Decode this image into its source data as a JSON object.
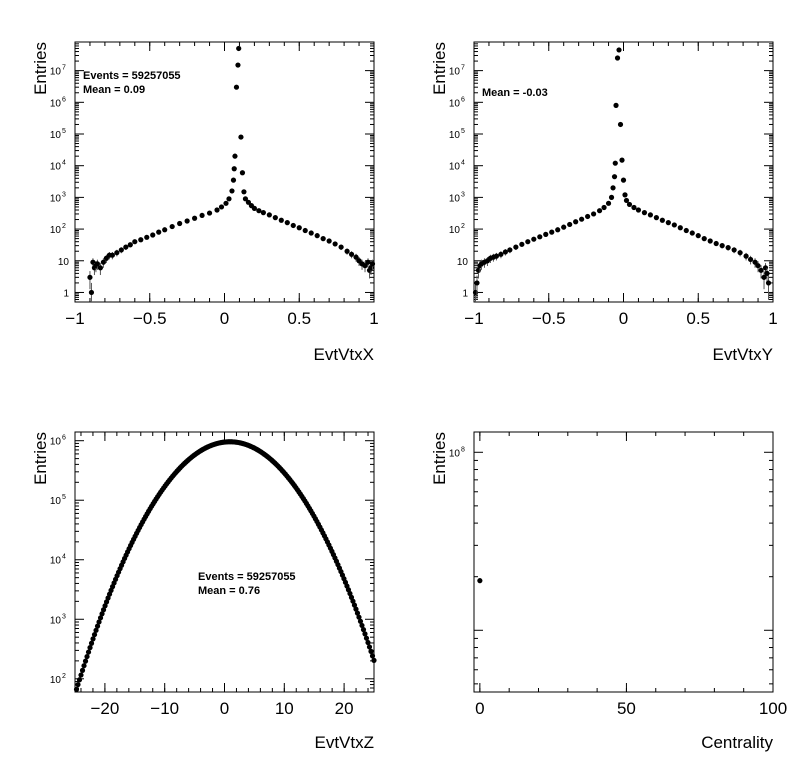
{
  "chart_data": [
    {
      "type": "scatter",
      "xlabel": "EvtVtxX",
      "ylabel": "Entries",
      "xlim": [
        -1,
        1
      ],
      "ylim": [
        0.5,
        80000000
      ],
      "yscale": "log",
      "x_ticks": [
        "−1",
        "−0.5",
        "0",
        "0.5",
        "1"
      ],
      "y_ticks": [
        "1",
        "10",
        "10^2",
        "10^3",
        "10^4",
        "10^5",
        "10^6",
        "10^7"
      ],
      "stats": [
        "Events = 59257055",
        "Mean = 0.09"
      ],
      "points": [
        [
          -0.9,
          3
        ],
        [
          -0.89,
          1
        ],
        [
          -0.88,
          9
        ],
        [
          -0.87,
          6
        ],
        [
          -0.86,
          7
        ],
        [
          -0.85,
          8
        ],
        [
          -0.83,
          6
        ],
        [
          -0.81,
          9
        ],
        [
          -0.79,
          12
        ],
        [
          -0.77,
          15
        ],
        [
          -0.75,
          15
        ],
        [
          -0.72,
          18
        ],
        [
          -0.69,
          22
        ],
        [
          -0.66,
          27
        ],
        [
          -0.63,
          32
        ],
        [
          -0.6,
          40
        ],
        [
          -0.56,
          46
        ],
        [
          -0.52,
          55
        ],
        [
          -0.48,
          65
        ],
        [
          -0.44,
          80
        ],
        [
          -0.4,
          95
        ],
        [
          -0.35,
          120
        ],
        [
          -0.3,
          150
        ],
        [
          -0.25,
          180
        ],
        [
          -0.2,
          220
        ],
        [
          -0.15,
          270
        ],
        [
          -0.1,
          320
        ],
        [
          -0.05,
          400
        ],
        [
          -0.02,
          500
        ],
        [
          0.01,
          650
        ],
        [
          0.03,
          900
        ],
        [
          0.05,
          1600
        ],
        [
          0.06,
          3500
        ],
        [
          0.065,
          8000
        ],
        [
          0.07,
          20000
        ],
        [
          0.08,
          3000000
        ],
        [
          0.09,
          15000000
        ],
        [
          0.095,
          50000000
        ],
        [
          0.11,
          80000
        ],
        [
          0.12,
          6000
        ],
        [
          0.13,
          1500
        ],
        [
          0.14,
          900
        ],
        [
          0.16,
          700
        ],
        [
          0.18,
          550
        ],
        [
          0.2,
          450
        ],
        [
          0.23,
          380
        ],
        [
          0.26,
          330
        ],
        [
          0.3,
          280
        ],
        [
          0.34,
          230
        ],
        [
          0.38,
          190
        ],
        [
          0.42,
          160
        ],
        [
          0.46,
          130
        ],
        [
          0.5,
          110
        ],
        [
          0.54,
          90
        ],
        [
          0.58,
          75
        ],
        [
          0.62,
          62
        ],
        [
          0.66,
          50
        ],
        [
          0.7,
          42
        ],
        [
          0.74,
          34
        ],
        [
          0.78,
          27
        ],
        [
          0.82,
          20
        ],
        [
          0.85,
          16
        ],
        [
          0.88,
          13
        ],
        [
          0.9,
          10
        ],
        [
          0.92,
          8
        ],
        [
          0.94,
          7
        ],
        [
          0.96,
          9
        ],
        [
          0.97,
          5
        ],
        [
          0.98,
          6
        ],
        [
          0.99,
          8
        ]
      ]
    },
    {
      "type": "scatter",
      "xlabel": "EvtVtxY",
      "ylabel": "Entries",
      "xlim": [
        -1,
        1
      ],
      "ylim": [
        0.5,
        80000000
      ],
      "yscale": "log",
      "x_ticks": [
        "−1",
        "−0.5",
        "0",
        "0.5",
        "1"
      ],
      "y_ticks": [
        "1",
        "10",
        "10^2",
        "10^3",
        "10^4",
        "10^5",
        "10^6",
        "10^7"
      ],
      "stats": [
        "Mean = -0.03"
      ],
      "points": [
        [
          -0.99,
          1
        ],
        [
          -0.98,
          2
        ],
        [
          -0.97,
          5
        ],
        [
          -0.96,
          7
        ],
        [
          -0.95,
          8
        ],
        [
          -0.93,
          9
        ],
        [
          -0.91,
          10
        ],
        [
          -0.89,
          12
        ],
        [
          -0.87,
          13
        ],
        [
          -0.85,
          14
        ],
        [
          -0.82,
          16
        ],
        [
          -0.79,
          19
        ],
        [
          -0.76,
          22
        ],
        [
          -0.72,
          27
        ],
        [
          -0.68,
          33
        ],
        [
          -0.64,
          40
        ],
        [
          -0.6,
          48
        ],
        [
          -0.56,
          57
        ],
        [
          -0.52,
          68
        ],
        [
          -0.48,
          80
        ],
        [
          -0.44,
          95
        ],
        [
          -0.4,
          115
        ],
        [
          -0.36,
          140
        ],
        [
          -0.32,
          170
        ],
        [
          -0.28,
          205
        ],
        [
          -0.24,
          250
        ],
        [
          -0.2,
          300
        ],
        [
          -0.16,
          380
        ],
        [
          -0.13,
          480
        ],
        [
          -0.1,
          650
        ],
        [
          -0.08,
          1000
        ],
        [
          -0.07,
          2000
        ],
        [
          -0.06,
          4500
        ],
        [
          -0.055,
          12000
        ],
        [
          -0.05,
          800000
        ],
        [
          -0.04,
          25000000
        ],
        [
          -0.03,
          45000000
        ],
        [
          -0.02,
          200000
        ],
        [
          -0.01,
          15000
        ],
        [
          0,
          3500
        ],
        [
          0.01,
          1200
        ],
        [
          0.02,
          800
        ],
        [
          0.04,
          600
        ],
        [
          0.07,
          480
        ],
        [
          0.1,
          400
        ],
        [
          0.14,
          330
        ],
        [
          0.18,
          280
        ],
        [
          0.22,
          230
        ],
        [
          0.26,
          190
        ],
        [
          0.3,
          160
        ],
        [
          0.34,
          135
        ],
        [
          0.38,
          110
        ],
        [
          0.42,
          90
        ],
        [
          0.46,
          75
        ],
        [
          0.5,
          62
        ],
        [
          0.54,
          50
        ],
        [
          0.58,
          42
        ],
        [
          0.62,
          35
        ],
        [
          0.66,
          30
        ],
        [
          0.7,
          26
        ],
        [
          0.74,
          22
        ],
        [
          0.78,
          18
        ],
        [
          0.82,
          14
        ],
        [
          0.85,
          11
        ],
        [
          0.88,
          9
        ],
        [
          0.9,
          7
        ],
        [
          0.92,
          5
        ],
        [
          0.94,
          3
        ],
        [
          0.95,
          6
        ],
        [
          0.96,
          4
        ],
        [
          0.97,
          2
        ]
      ]
    },
    {
      "type": "scatter",
      "xlabel": "EvtVtxZ",
      "ylabel": "Entries",
      "xlim": [
        -25,
        25
      ],
      "ylim": [
        60,
        1400000
      ],
      "yscale": "log",
      "x_ticks": [
        "−20",
        "−10",
        "0",
        "10",
        "20"
      ],
      "y_ticks": [
        "10^2",
        "10^3",
        "10^4",
        "10^5",
        "10^6"
      ],
      "stats": [
        "Events = 59257055",
        "Mean = 0.76"
      ],
      "gauss": {
        "mean": 0.9,
        "peak": 960000,
        "edge": [
          25.1,
          190
        ]
      },
      "x_range": [
        -25,
        25
      ],
      "n_points": 200
    },
    {
      "type": "scatter",
      "xlabel": "Centrality",
      "ylabel": "Entries",
      "xlim": [
        -2,
        100
      ],
      "ylim": [
        4500000,
        130000000
      ],
      "yscale": "log",
      "x_ticks": [
        "0",
        "50",
        "100"
      ],
      "y_ticks": [
        "10^8"
      ],
      "points": [
        [
          0,
          19000000
        ]
      ]
    }
  ]
}
